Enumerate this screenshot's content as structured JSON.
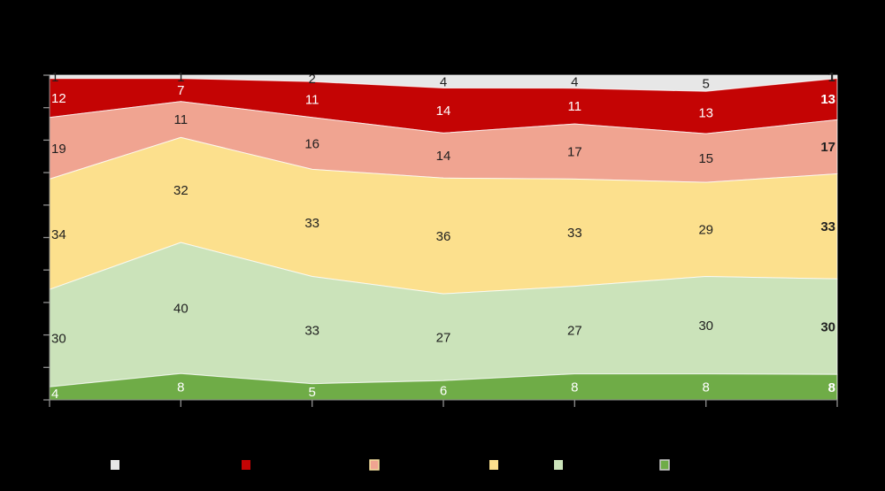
{
  "colors": {
    "background": "#000000",
    "axis": "#8f8f8f",
    "band_border": "#ffffff",
    "label_dark": "#1f1f1f",
    "label_light": "#ffffff"
  },
  "chart_data": {
    "type": "area",
    "stacking": "percent",
    "title": "",
    "title_visible": false,
    "axis_tick_labels_visible": false,
    "num_columns": 7,
    "ylim": [
      0,
      100
    ],
    "y_tick_count": 11,
    "grid": false,
    "last_column_bold": true,
    "series": [
      {
        "name": "gray",
        "color": "#E7E7E7",
        "label_color": "#1f1f1f",
        "values": [
          1,
          1,
          2,
          4,
          4,
          5,
          1
        ]
      },
      {
        "name": "dark-red",
        "color": "#C40404",
        "label_color": "#ffffff",
        "values": [
          12,
          7,
          11,
          14,
          11,
          13,
          13
        ]
      },
      {
        "name": "salmon",
        "color": "#F0A491",
        "label_color": "#1f1f1f",
        "values": [
          19,
          11,
          16,
          14,
          17,
          15,
          17
        ]
      },
      {
        "name": "yellow",
        "color": "#FCE08D",
        "label_color": "#1f1f1f",
        "values": [
          34,
          32,
          33,
          36,
          33,
          29,
          33
        ]
      },
      {
        "name": "light-green",
        "color": "#CBE3BA",
        "label_color": "#1f1f1f",
        "values": [
          30,
          40,
          33,
          27,
          27,
          30,
          30
        ]
      },
      {
        "name": "green",
        "color": "#6FAC47",
        "label_color": "#ffffff",
        "values": [
          4,
          8,
          5,
          6,
          8,
          8,
          8
        ]
      }
    ],
    "legend": {
      "position": "bottom",
      "labels_visible": false,
      "items": [
        {
          "swatch_color": "#E7E7E7",
          "border": "none"
        },
        {
          "swatch_color": "#C40404",
          "border": "none"
        },
        {
          "swatch_color": "#F0A491",
          "border": "#F7E3A0"
        },
        {
          "swatch_color": "#FCE08D",
          "border": "none"
        },
        {
          "swatch_color": "#CBE3BA",
          "border": "none"
        },
        {
          "swatch_color": "#6FAC47",
          "border": "#CFCFCF"
        }
      ],
      "x_positions": [
        125,
        273,
        418,
        553,
        626,
        746
      ],
      "y_position": 520
    }
  }
}
